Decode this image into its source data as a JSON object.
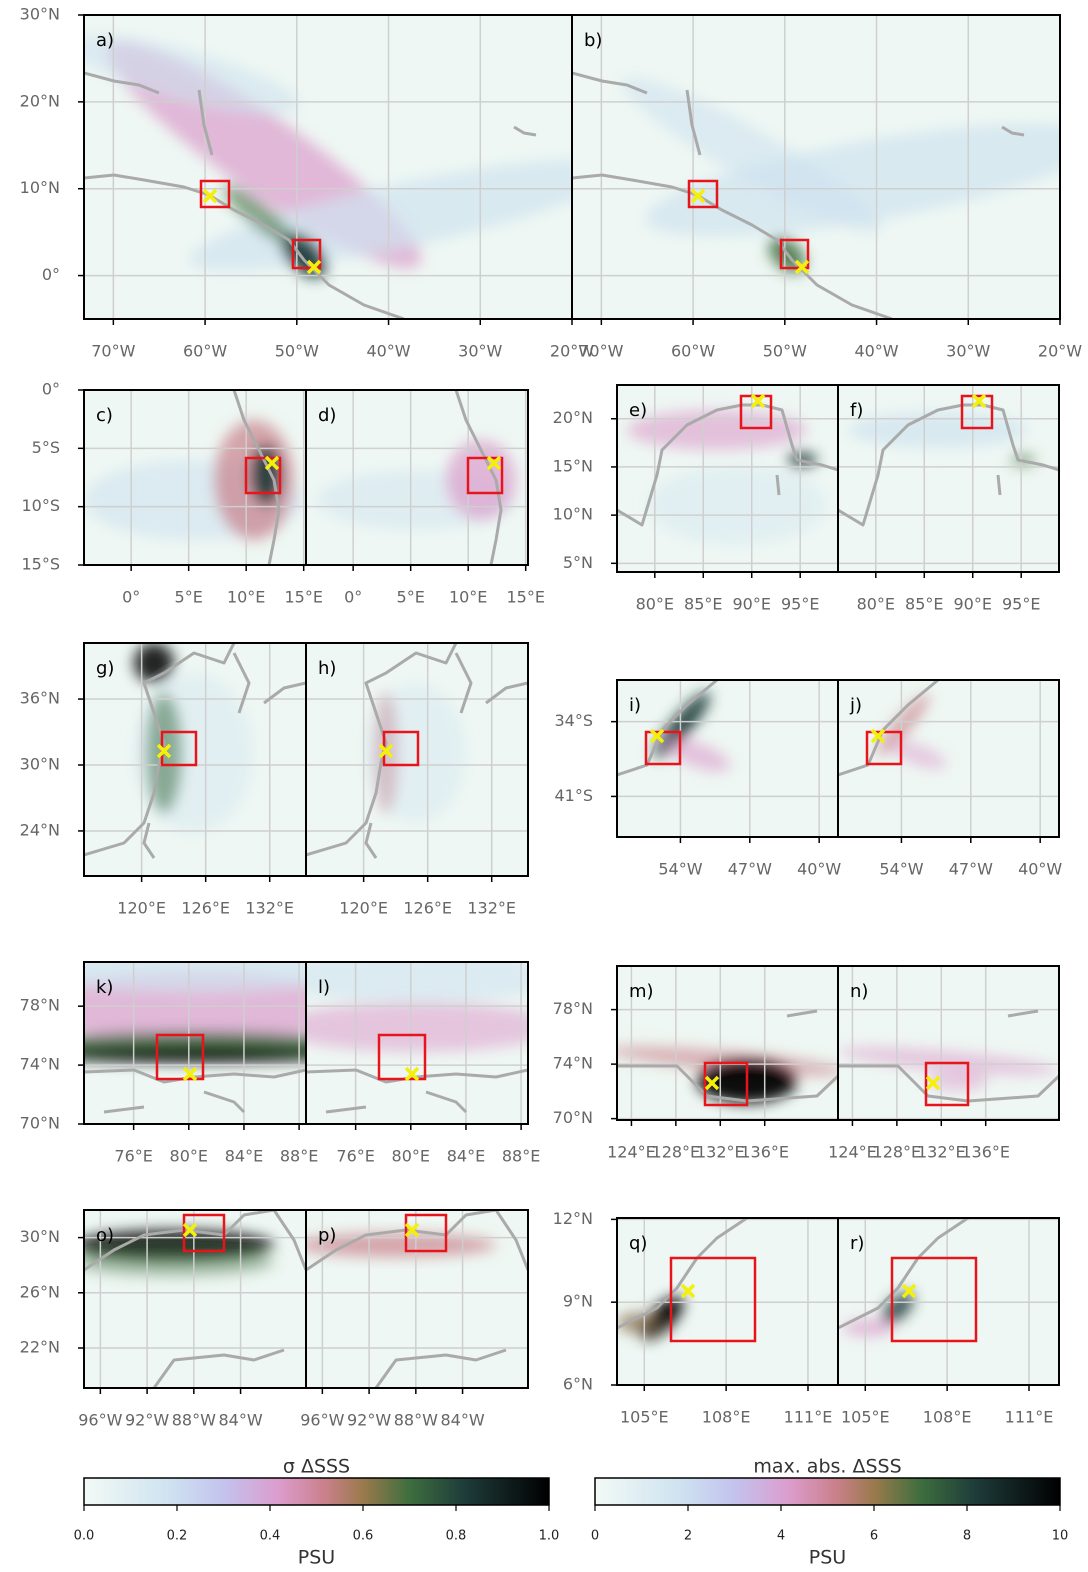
{
  "panel_groups": [
    {
      "panels": [
        "a)",
        "b)"
      ],
      "xlim": [
        -73.2,
        -20
      ],
      "ylim": [
        -5,
        30
      ],
      "xticks": [
        {
          "value": -70,
          "label": "70°W"
        },
        {
          "value": -60,
          "label": "60°W"
        },
        {
          "value": -50,
          "label": "50°W"
        },
        {
          "value": -40,
          "label": "40°W"
        },
        {
          "value": -30,
          "label": "30°W"
        },
        {
          "value": -20,
          "label": "20°W"
        }
      ],
      "yticks": [
        {
          "value": 30,
          "label": "30°N"
        },
        {
          "value": 20,
          "label": "20°N"
        },
        {
          "value": 10,
          "label": "10°N"
        },
        {
          "value": 0,
          "label": "0°"
        }
      ]
    },
    {
      "panels": [
        "c)",
        "d)"
      ],
      "xlim": [
        -4.1,
        15.2
      ],
      "ylim": [
        -15,
        0
      ],
      "xticks": [
        {
          "value": 0,
          "label": "0°"
        },
        {
          "value": 5,
          "label": "5°E"
        },
        {
          "value": 10,
          "label": "10°E"
        },
        {
          "value": 15,
          "label": "15°E"
        }
      ],
      "yticks": [
        {
          "value": 0,
          "label": "0°"
        },
        {
          "value": -5,
          "label": "5°S"
        },
        {
          "value": -10,
          "label": "10°S"
        },
        {
          "value": -15,
          "label": "15°S"
        }
      ]
    },
    {
      "panels": [
        "e)",
        "f)"
      ],
      "xlim": [
        76.1,
        98.9
      ],
      "ylim": [
        4.1,
        23.5
      ],
      "xticks": [
        {
          "value": 80,
          "label": "80°E"
        },
        {
          "value": 85,
          "label": "85°E"
        },
        {
          "value": 90,
          "label": "90°E"
        },
        {
          "value": 95,
          "label": "95°E"
        }
      ],
      "yticks": [
        {
          "value": 20,
          "label": "20°N"
        },
        {
          "value": 15,
          "label": "15°N"
        },
        {
          "value": 10,
          "label": "10°N"
        },
        {
          "value": 5,
          "label": "5°N"
        }
      ]
    },
    {
      "panels": [
        "g)",
        "h)"
      ],
      "xlim": [
        114.6,
        135.4
      ],
      "ylim": [
        19.9,
        41.1
      ],
      "xticks": [
        {
          "value": 120,
          "label": "120°E"
        },
        {
          "value": 126,
          "label": "126°E"
        },
        {
          "value": 132,
          "label": "132°E"
        }
      ],
      "yticks": [
        {
          "value": 36,
          "label": "36°N"
        },
        {
          "value": 30,
          "label": "30°N"
        },
        {
          "value": 24,
          "label": "24°N"
        }
      ]
    },
    {
      "panels": [
        "i)",
        "j)"
      ],
      "xlim": [
        -60.4,
        -38.1
      ],
      "ylim": [
        -44.8,
        -30.1
      ],
      "xticks": [
        {
          "value": -54,
          "label": "54°W"
        },
        {
          "value": -47,
          "label": "47°W"
        },
        {
          "value": -40,
          "label": "40°W"
        }
      ],
      "yticks": [
        {
          "value": -34,
          "label": "34°S"
        },
        {
          "value": -41,
          "label": "41°S"
        }
      ]
    },
    {
      "panels": [
        "k)",
        "l)"
      ],
      "xlim": [
        72.4,
        88.5
      ],
      "ylim": [
        70,
        81
      ],
      "xticks": [
        {
          "value": 76,
          "label": "76°E"
        },
        {
          "value": 80,
          "label": "80°E"
        },
        {
          "value": 84,
          "label": "84°E"
        },
        {
          "value": 88,
          "label": "88°E"
        }
      ],
      "yticks": [
        {
          "value": 78,
          "label": "78°N"
        },
        {
          "value": 74,
          "label": "74°N"
        },
        {
          "value": 70,
          "label": "70°N"
        }
      ]
    },
    {
      "panels": [
        "m)",
        "n)"
      ],
      "xlim": [
        122.7,
        142.6
      ],
      "ylim": [
        69.9,
        81.2
      ],
      "xticks": [
        {
          "value": 124,
          "label": "124°E"
        },
        {
          "value": 128,
          "label": "128°E"
        },
        {
          "value": 132,
          "label": "132°E"
        },
        {
          "value": 136,
          "label": "136°E"
        }
      ],
      "yticks": [
        {
          "value": 78,
          "label": "78°N"
        },
        {
          "value": 74,
          "label": "74°N"
        },
        {
          "value": 70,
          "label": "70°N"
        }
      ]
    },
    {
      "panels": [
        "o)",
        "p)"
      ],
      "xlim": [
        -97.4,
        -78.4
      ],
      "ylim": [
        19.1,
        32
      ],
      "xticks": [
        {
          "value": -96,
          "label": "96°W"
        },
        {
          "value": -92,
          "label": "92°W"
        },
        {
          "value": -88,
          "label": "88°W"
        },
        {
          "value": -84,
          "label": "84°W"
        }
      ],
      "yticks": [
        {
          "value": 30,
          "label": "30°N"
        },
        {
          "value": 26,
          "label": "26°N"
        },
        {
          "value": 22,
          "label": "22°N"
        }
      ]
    },
    {
      "panels": [
        "q)",
        "r)"
      ],
      "xlim": [
        104,
        112.1
      ],
      "ylim": [
        6,
        12.05
      ],
      "xticks": [
        {
          "value": 105,
          "label": "105°E"
        },
        {
          "value": 108,
          "label": "108°E"
        },
        {
          "value": 111,
          "label": "111°E"
        }
      ],
      "yticks": [
        {
          "value": 12,
          "label": "12°N"
        },
        {
          "value": 9,
          "label": "9°N"
        },
        {
          "value": 6,
          "label": "6°N"
        }
      ]
    }
  ],
  "colorbars": [
    {
      "title": "σ ΔSSS",
      "label": "PSU",
      "lim": [
        0,
        1
      ],
      "ticks": [
        {
          "value": 0,
          "label": "0.0"
        },
        {
          "value": 0.2,
          "label": "0.2"
        },
        {
          "value": 0.4,
          "label": "0.4"
        },
        {
          "value": 0.6,
          "label": "0.6"
        },
        {
          "value": 0.8,
          "label": "0.8"
        },
        {
          "value": 1,
          "label": "1.0"
        }
      ]
    },
    {
      "title": "max. abs. ΔSSS",
      "label": "PSU",
      "lim": [
        0,
        10
      ],
      "ticks": [
        0,
        2,
        4,
        6,
        8,
        10
      ]
    }
  ]
}
